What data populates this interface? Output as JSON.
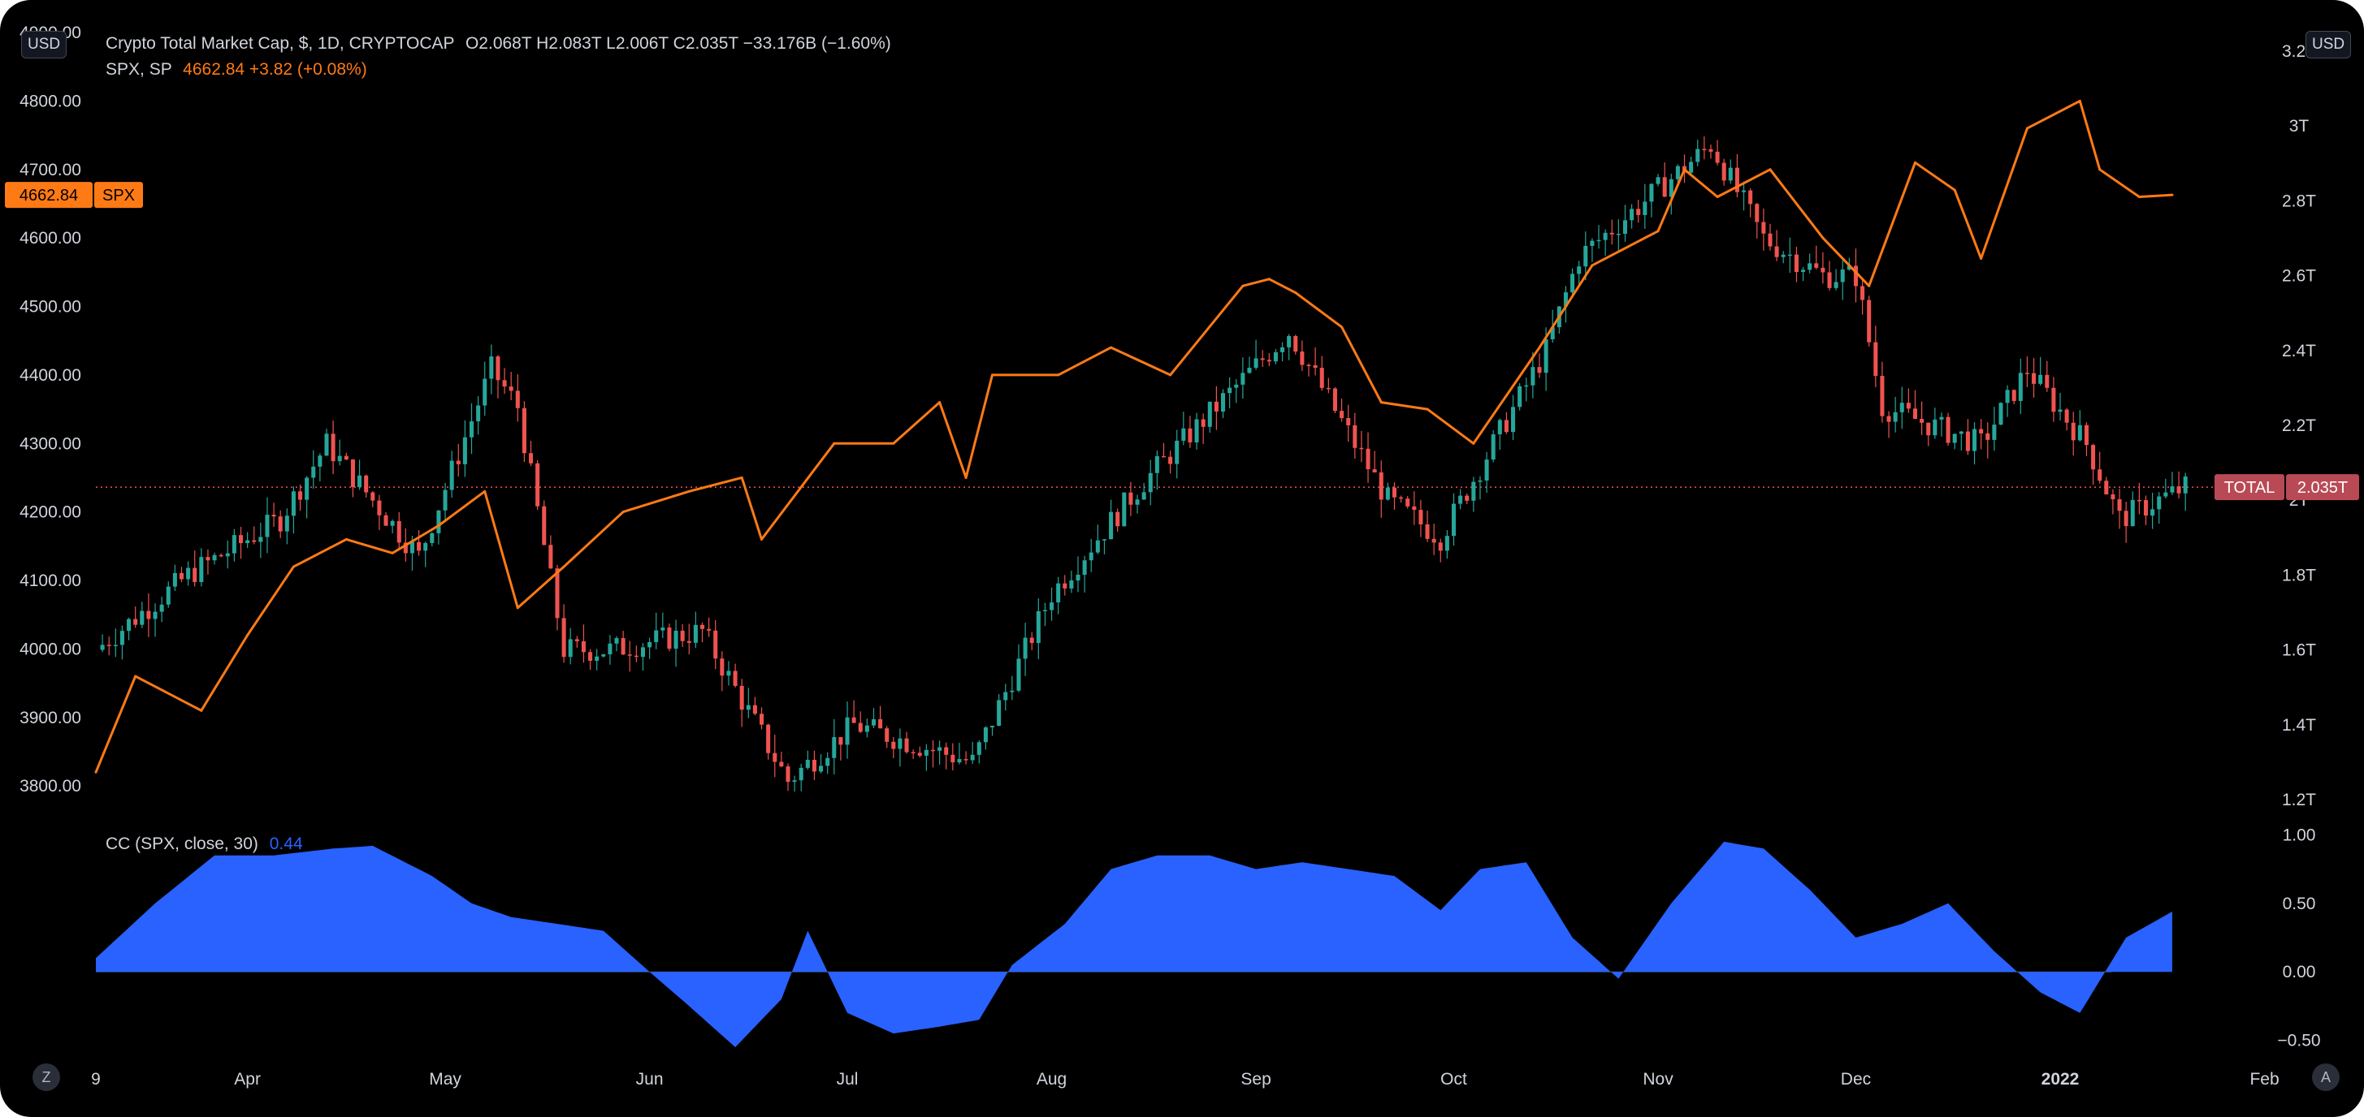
{
  "legend": {
    "main_title": "Crypto Total Market Cap, $, 1D, CRYPTOCAP",
    "main_ohlc": "O2.068T  H2.083T  L2.006T  C2.035T  −33.176B (−1.60%)",
    "spx_name": "SPX, SP",
    "spx_values": "4662.84  +3.82 (+0.08%)",
    "indicator_name": "CC (SPX, close, 30)",
    "indicator_value": "0.44"
  },
  "labels": {
    "unit_left": "USD",
    "unit_right": "USD",
    "spx_price_tag": "4662.84",
    "spx_symbol_tag": "SPX",
    "total_symbol_tag": "TOTAL",
    "total_price_tag": "2.035T",
    "corner_left": "Z",
    "corner_right": "A"
  },
  "colors": {
    "background": "#000000",
    "up_candle": "#26a69a",
    "down_candle": "#ef5350",
    "spx_line": "#ff7a15",
    "correlation_fill": "#2962ff",
    "price_line": "#ef5350",
    "axis_text": "#d1d4dc"
  },
  "chart_data": [
    {
      "type": "candlestick",
      "title": "Crypto Total Market Cap, $, 1D, CRYPTOCAP",
      "unit": "USD",
      "axis": "right",
      "y_ticks": [
        "1.2T",
        "1.4T",
        "1.6T",
        "1.8T",
        "2T",
        "2.2T",
        "2.4T",
        "2.6T",
        "2.8T",
        "3T",
        "3.2T"
      ],
      "ylim_trillions": [
        1.2,
        3.25
      ],
      "last_close": "2.035T",
      "x": [
        "2021-03-09",
        "2021-03-23",
        "2021-04-06",
        "2021-04-13",
        "2021-04-27",
        "2021-05-08",
        "2021-05-12",
        "2021-05-19",
        "2021-05-26",
        "2021-06-09",
        "2021-06-22",
        "2021-07-02",
        "2021-07-20",
        "2021-08-01",
        "2021-08-15",
        "2021-09-06",
        "2021-09-21",
        "2021-09-29",
        "2021-10-15",
        "2021-10-20",
        "2021-11-09",
        "2021-11-17",
        "2021-11-26",
        "2021-12-01",
        "2021-12-05",
        "2021-12-20",
        "2021-12-27",
        "2022-01-05",
        "2022-01-10",
        "2022-01-20"
      ],
      "close_trillions": [
        1.6,
        1.8,
        1.95,
        2.15,
        1.85,
        2.35,
        2.25,
        1.6,
        1.6,
        1.65,
        1.25,
        1.4,
        1.3,
        1.75,
        2.05,
        2.45,
        2.0,
        1.9,
        2.4,
        2.65,
        2.95,
        2.7,
        2.6,
        2.6,
        2.25,
        2.15,
        2.35,
        2.15,
        1.95,
        2.035
      ]
    },
    {
      "type": "line",
      "name": "SPX, SP",
      "axis": "left",
      "y_ticks": [
        "3800.00",
        "3900.00",
        "4000.00",
        "4100.00",
        "4200.00",
        "4300.00",
        "4400.00",
        "4500.00",
        "4600.00",
        "4700.00",
        "4800.00",
        "4900.00"
      ],
      "ylim": [
        3780,
        4900
      ],
      "last_value": 4662.84,
      "x": [
        "2021-03-09",
        "2021-03-15",
        "2021-03-25",
        "2021-04-01",
        "2021-04-08",
        "2021-04-16",
        "2021-04-23",
        "2021-04-30",
        "2021-05-07",
        "2021-05-12",
        "2021-05-19",
        "2021-05-28",
        "2021-06-07",
        "2021-06-15",
        "2021-06-18",
        "2021-06-29",
        "2021-07-08",
        "2021-07-15",
        "2021-07-19",
        "2021-07-23",
        "2021-08-02",
        "2021-08-10",
        "2021-08-19",
        "2021-08-30",
        "2021-09-03",
        "2021-09-07",
        "2021-09-14",
        "2021-09-20",
        "2021-09-27",
        "2021-10-04",
        "2021-10-14",
        "2021-10-22",
        "2021-11-01",
        "2021-11-05",
        "2021-11-10",
        "2021-11-18",
        "2021-11-26",
        "2021-11-30",
        "2021-12-03",
        "2021-12-10",
        "2021-12-16",
        "2021-12-20",
        "2021-12-27",
        "2022-01-04",
        "2022-01-07",
        "2022-01-13",
        "2022-01-18"
      ],
      "values": [
        3820,
        3960,
        3910,
        4020,
        4120,
        4160,
        4140,
        4180,
        4230,
        4060,
        4120,
        4200,
        4230,
        4250,
        4160,
        4300,
        4300,
        4360,
        4250,
        4400,
        4400,
        4440,
        4400,
        4530,
        4540,
        4520,
        4470,
        4360,
        4350,
        4300,
        4440,
        4560,
        4610,
        4700,
        4660,
        4700,
        4600,
        4560,
        4530,
        4710,
        4670,
        4570,
        4760,
        4800,
        4700,
        4660,
        4662.84
      ]
    },
    {
      "type": "area",
      "name": "CC (SPX, close, 30)",
      "y_ticks": [
        "−0.50",
        "0.00",
        "0.50",
        "1.00"
      ],
      "ylim": [
        -0.55,
        1.05
      ],
      "last_value": 0.44,
      "x": [
        "2021-03-09",
        "2021-03-18",
        "2021-03-27",
        "2021-04-05",
        "2021-04-14",
        "2021-04-20",
        "2021-04-29",
        "2021-05-05",
        "2021-05-11",
        "2021-05-18",
        "2021-05-25",
        "2021-06-01",
        "2021-06-07",
        "2021-06-14",
        "2021-06-21",
        "2021-06-25",
        "2021-07-01",
        "2021-07-08",
        "2021-07-15",
        "2021-07-21",
        "2021-07-26",
        "2021-08-03",
        "2021-08-10",
        "2021-08-17",
        "2021-08-25",
        "2021-09-01",
        "2021-09-08",
        "2021-09-15",
        "2021-09-22",
        "2021-09-29",
        "2021-10-05",
        "2021-10-12",
        "2021-10-19",
        "2021-10-26",
        "2021-11-03",
        "2021-11-11",
        "2021-11-17",
        "2021-11-24",
        "2021-12-01",
        "2021-12-08",
        "2021-12-15",
        "2021-12-22",
        "2021-12-29",
        "2022-01-04",
        "2022-01-11",
        "2022-01-18"
      ],
      "values": [
        0.1,
        0.5,
        0.85,
        0.85,
        0.9,
        0.92,
        0.7,
        0.5,
        0.4,
        0.35,
        0.3,
        0.0,
        -0.25,
        -0.55,
        -0.2,
        0.3,
        -0.3,
        -0.45,
        -0.4,
        -0.35,
        0.05,
        0.35,
        0.75,
        0.85,
        0.85,
        0.75,
        0.8,
        0.75,
        0.7,
        0.45,
        0.75,
        0.8,
        0.25,
        -0.05,
        0.5,
        0.95,
        0.9,
        0.6,
        0.25,
        0.35,
        0.5,
        0.15,
        -0.15,
        -0.3,
        0.25,
        0.44
      ]
    }
  ],
  "x_axis": {
    "labels": [
      "9",
      "Apr",
      "May",
      "Jun",
      "Jul",
      "Aug",
      "Sep",
      "Oct",
      "Nov",
      "Dec",
      "2022",
      "Feb"
    ],
    "label_dates": [
      "2021-03-09",
      "2021-04-01",
      "2021-05-01",
      "2021-06-01",
      "2021-07-01",
      "2021-08-01",
      "2021-09-01",
      "2021-10-01",
      "2021-11-01",
      "2021-12-01",
      "2022-01-01",
      "2022-02-01"
    ],
    "start": "2021-03-09",
    "end": "2022-02-05"
  }
}
